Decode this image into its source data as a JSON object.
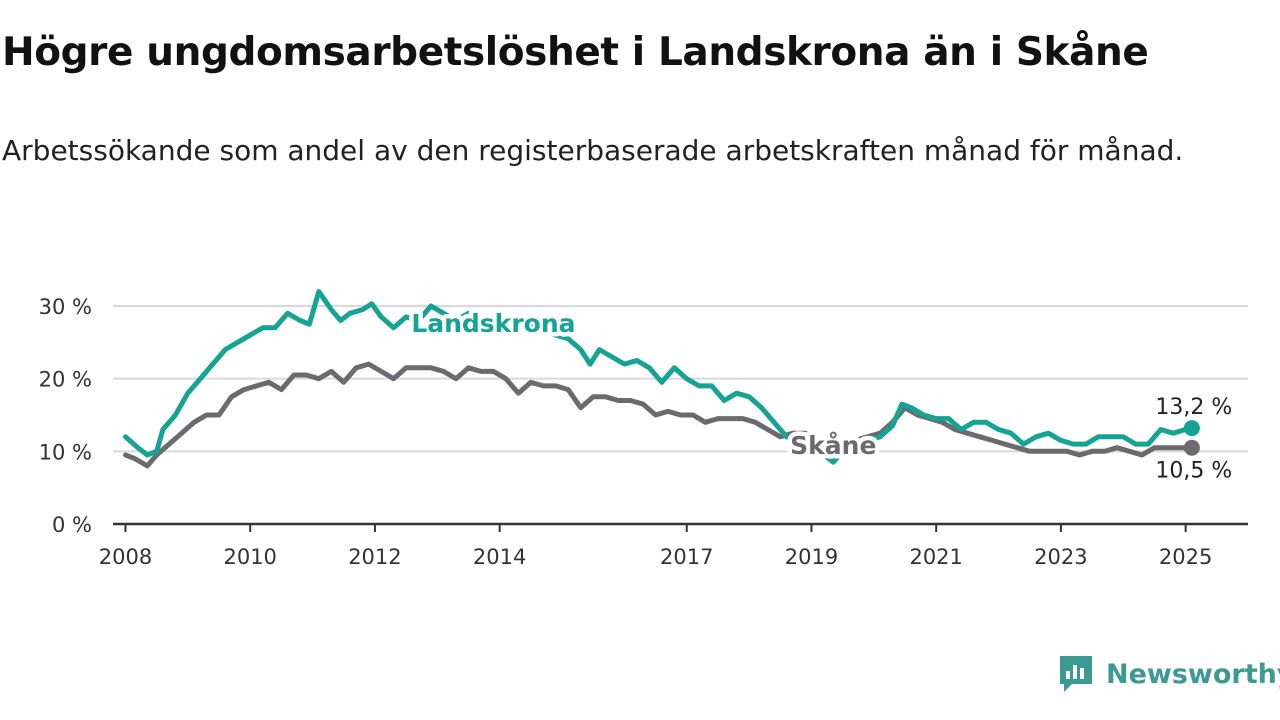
{
  "title": "Högre ungdomsarbetslöshet i Landskrona än i Skåne",
  "subtitle": "Arbetssökande som andel av den registerbaserade arbetskraften månad för månad.",
  "brand": "Newsworthy",
  "colors": {
    "landskrona": "#14a394",
    "skane": "#6b6a6e",
    "grid": "#d9d9d9",
    "axis": "#333333"
  },
  "chart_data": {
    "type": "line",
    "title": "Högre ungdomsarbetslöshet i Landskrona än i Skåne",
    "subtitle": "Arbetssökande som andel av den registerbaserade arbetskraften månad för månad.",
    "xlabel": "",
    "ylabel": "",
    "xlim": [
      2007.8,
      2026.0
    ],
    "ylim": [
      0,
      30
    ],
    "grid": true,
    "legend": "inline labels",
    "x_ticks": [
      2008,
      2010,
      2012,
      2014,
      2017,
      2019,
      2021,
      2023,
      2025
    ],
    "x_tick_labels": [
      "2008",
      "2010",
      "2012",
      "2014",
      "2017",
      "2019",
      "2021",
      "2023",
      "2025"
    ],
    "y_ticks": [
      0,
      10,
      20,
      30
    ],
    "y_tick_labels": [
      "0 %",
      "10 %",
      "20 %",
      "30 %"
    ],
    "series": [
      {
        "name": "Landskrona",
        "end_label": "13,2 %",
        "points": [
          [
            2008.0,
            12.0
          ],
          [
            2008.2,
            10.5
          ],
          [
            2008.35,
            9.5
          ],
          [
            2008.5,
            10.0
          ],
          [
            2008.6,
            13.0
          ],
          [
            2008.8,
            15.0
          ],
          [
            2009.0,
            18.0
          ],
          [
            2009.2,
            20.0
          ],
          [
            2009.4,
            22.0
          ],
          [
            2009.6,
            24.0
          ],
          [
            2009.8,
            25.0
          ],
          [
            2010.0,
            26.0
          ],
          [
            2010.2,
            27.0
          ],
          [
            2010.4,
            27.0
          ],
          [
            2010.6,
            29.0
          ],
          [
            2010.8,
            28.0
          ],
          [
            2010.95,
            27.5
          ],
          [
            2011.1,
            32.0
          ],
          [
            2011.3,
            29.5
          ],
          [
            2011.45,
            28.0
          ],
          [
            2011.6,
            29.0
          ],
          [
            2011.8,
            29.5
          ],
          [
            2011.95,
            30.3
          ],
          [
            2012.1,
            28.5
          ],
          [
            2012.3,
            27.0
          ],
          [
            2012.5,
            28.5
          ],
          [
            2012.7,
            28.0
          ],
          [
            2012.9,
            30.0
          ],
          [
            2013.1,
            29.0
          ],
          [
            2013.3,
            28.0
          ],
          [
            2013.5,
            29.0
          ],
          [
            2013.7,
            28.5
          ],
          [
            2013.9,
            28.0
          ],
          [
            2014.1,
            27.0
          ],
          [
            2014.3,
            26.5
          ],
          [
            2014.5,
            27.5
          ],
          [
            2014.7,
            26.5
          ],
          [
            2014.9,
            26.0
          ],
          [
            2015.1,
            25.5
          ],
          [
            2015.3,
            24.0
          ],
          [
            2015.45,
            22.0
          ],
          [
            2015.6,
            24.0
          ],
          [
            2015.8,
            23.0
          ],
          [
            2016.0,
            22.0
          ],
          [
            2016.2,
            22.5
          ],
          [
            2016.4,
            21.5
          ],
          [
            2016.6,
            19.5
          ],
          [
            2016.8,
            21.5
          ],
          [
            2017.0,
            20.0
          ],
          [
            2017.2,
            19.0
          ],
          [
            2017.4,
            19.0
          ],
          [
            2017.6,
            17.0
          ],
          [
            2017.8,
            18.0
          ],
          [
            2018.0,
            17.5
          ],
          [
            2018.2,
            16.0
          ],
          [
            2018.4,
            14.0
          ],
          [
            2018.6,
            12.0
          ],
          [
            2018.8,
            11.5
          ],
          [
            2019.0,
            10.5
          ],
          [
            2019.2,
            9.5
          ],
          [
            2019.35,
            8.5
          ],
          [
            2019.5,
            10.0
          ],
          [
            2019.7,
            11.0
          ],
          [
            2019.9,
            11.5
          ],
          [
            2020.1,
            12.0
          ],
          [
            2020.3,
            13.5
          ],
          [
            2020.45,
            16.5
          ],
          [
            2020.6,
            16.0
          ],
          [
            2020.8,
            15.0
          ],
          [
            2021.0,
            14.5
          ],
          [
            2021.2,
            14.5
          ],
          [
            2021.4,
            13.0
          ],
          [
            2021.6,
            14.0
          ],
          [
            2021.8,
            14.0
          ],
          [
            2022.0,
            13.0
          ],
          [
            2022.2,
            12.5
          ],
          [
            2022.4,
            11.0
          ],
          [
            2022.6,
            12.0
          ],
          [
            2022.8,
            12.5
          ],
          [
            2023.0,
            11.5
          ],
          [
            2023.2,
            11.0
          ],
          [
            2023.4,
            11.0
          ],
          [
            2023.6,
            12.0
          ],
          [
            2023.8,
            12.0
          ],
          [
            2024.0,
            12.0
          ],
          [
            2024.2,
            11.0
          ],
          [
            2024.4,
            11.0
          ],
          [
            2024.6,
            13.0
          ],
          [
            2024.8,
            12.5
          ],
          [
            2025.0,
            13.0
          ],
          [
            2025.1,
            13.2
          ]
        ]
      },
      {
        "name": "Skåne",
        "end_label": "10,5 %",
        "points": [
          [
            2008.0,
            9.5
          ],
          [
            2008.15,
            9.0
          ],
          [
            2008.35,
            8.0
          ],
          [
            2008.5,
            9.5
          ],
          [
            2008.7,
            11.0
          ],
          [
            2008.9,
            12.5
          ],
          [
            2009.1,
            14.0
          ],
          [
            2009.3,
            15.0
          ],
          [
            2009.5,
            15.0
          ],
          [
            2009.7,
            17.5
          ],
          [
            2009.9,
            18.5
          ],
          [
            2010.1,
            19.0
          ],
          [
            2010.3,
            19.5
          ],
          [
            2010.5,
            18.5
          ],
          [
            2010.7,
            20.5
          ],
          [
            2010.9,
            20.5
          ],
          [
            2011.1,
            20.0
          ],
          [
            2011.3,
            21.0
          ],
          [
            2011.5,
            19.5
          ],
          [
            2011.7,
            21.5
          ],
          [
            2011.9,
            22.0
          ],
          [
            2012.1,
            21.0
          ],
          [
            2012.3,
            20.0
          ],
          [
            2012.5,
            21.5
          ],
          [
            2012.7,
            21.5
          ],
          [
            2012.9,
            21.5
          ],
          [
            2013.1,
            21.0
          ],
          [
            2013.3,
            20.0
          ],
          [
            2013.5,
            21.5
          ],
          [
            2013.7,
            21.0
          ],
          [
            2013.9,
            21.0
          ],
          [
            2014.1,
            20.0
          ],
          [
            2014.3,
            18.0
          ],
          [
            2014.5,
            19.5
          ],
          [
            2014.7,
            19.0
          ],
          [
            2014.9,
            19.0
          ],
          [
            2015.1,
            18.5
          ],
          [
            2015.3,
            16.0
          ],
          [
            2015.5,
            17.5
          ],
          [
            2015.7,
            17.5
          ],
          [
            2015.9,
            17.0
          ],
          [
            2016.1,
            17.0
          ],
          [
            2016.3,
            16.5
          ],
          [
            2016.5,
            15.0
          ],
          [
            2016.7,
            15.5
          ],
          [
            2016.9,
            15.0
          ],
          [
            2017.1,
            15.0
          ],
          [
            2017.3,
            14.0
          ],
          [
            2017.5,
            14.5
          ],
          [
            2017.7,
            14.5
          ],
          [
            2017.9,
            14.5
          ],
          [
            2018.1,
            14.0
          ],
          [
            2018.3,
            13.0
          ],
          [
            2018.5,
            12.0
          ],
          [
            2018.7,
            12.5
          ],
          [
            2018.9,
            12.5
          ],
          [
            2019.1,
            11.5
          ],
          [
            2019.3,
            11.0
          ],
          [
            2019.5,
            11.0
          ],
          [
            2019.7,
            11.5
          ],
          [
            2019.9,
            12.0
          ],
          [
            2020.1,
            12.5
          ],
          [
            2020.3,
            14.0
          ],
          [
            2020.5,
            16.0
          ],
          [
            2020.7,
            15.0
          ],
          [
            2020.9,
            14.5
          ],
          [
            2021.1,
            14.0
          ],
          [
            2021.3,
            13.0
          ],
          [
            2021.5,
            12.5
          ],
          [
            2021.7,
            12.0
          ],
          [
            2021.9,
            11.5
          ],
          [
            2022.1,
            11.0
          ],
          [
            2022.3,
            10.5
          ],
          [
            2022.5,
            10.0
          ],
          [
            2022.7,
            10.0
          ],
          [
            2022.9,
            10.0
          ],
          [
            2023.1,
            10.0
          ],
          [
            2023.3,
            9.5
          ],
          [
            2023.5,
            10.0
          ],
          [
            2023.7,
            10.0
          ],
          [
            2023.9,
            10.5
          ],
          [
            2024.1,
            10.0
          ],
          [
            2024.3,
            9.5
          ],
          [
            2024.5,
            10.5
          ],
          [
            2024.7,
            10.5
          ],
          [
            2024.9,
            10.5
          ],
          [
            2025.1,
            10.5
          ]
        ]
      }
    ]
  }
}
